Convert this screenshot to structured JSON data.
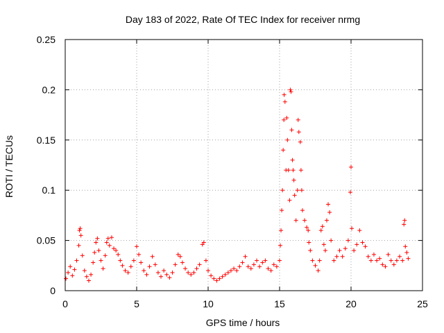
{
  "chart_data": {
    "type": "scatter",
    "title": "Day 183 of 2022, Rate Of TEC Index for receiver nrmg",
    "xlabel": "GPS time / hours",
    "ylabel": "ROTI / TECUs",
    "xlim": [
      0,
      25
    ],
    "ylim": [
      0,
      0.25
    ],
    "xticks": [
      0,
      5,
      10,
      15,
      20,
      25
    ],
    "xtick_labels": [
      "0",
      "5",
      "10",
      "15",
      "20",
      "25"
    ],
    "yticks": [
      0,
      0.05,
      0.1,
      0.15,
      0.2,
      0.25
    ],
    "ytick_labels": [
      "0",
      "0.05",
      "0.1",
      "0.15",
      "0.2",
      "0.25"
    ],
    "grid": true,
    "marker": "+",
    "color": "#ff0000",
    "series": [
      {
        "name": "ROTI",
        "points": [
          [
            0.05,
            0.012
          ],
          [
            0.2,
            0.018
          ],
          [
            0.35,
            0.024
          ],
          [
            0.5,
            0.015
          ],
          [
            0.65,
            0.021
          ],
          [
            0.8,
            0.03
          ],
          [
            0.95,
            0.045
          ],
          [
            1.0,
            0.06
          ],
          [
            1.05,
            0.062
          ],
          [
            1.1,
            0.055
          ],
          [
            1.2,
            0.035
          ],
          [
            1.35,
            0.02
          ],
          [
            1.5,
            0.014
          ],
          [
            1.65,
            0.01
          ],
          [
            1.8,
            0.016
          ],
          [
            1.95,
            0.028
          ],
          [
            2.05,
            0.038
          ],
          [
            2.15,
            0.048
          ],
          [
            2.25,
            0.052
          ],
          [
            2.35,
            0.04
          ],
          [
            2.5,
            0.03
          ],
          [
            2.65,
            0.022
          ],
          [
            2.8,
            0.035
          ],
          [
            2.9,
            0.048
          ],
          [
            3.0,
            0.052
          ],
          [
            3.1,
            0.045
          ],
          [
            3.25,
            0.053
          ],
          [
            3.4,
            0.042
          ],
          [
            3.55,
            0.04
          ],
          [
            3.7,
            0.036
          ],
          [
            3.85,
            0.03
          ],
          [
            4.0,
            0.025
          ],
          [
            4.2,
            0.02
          ],
          [
            4.4,
            0.018
          ],
          [
            4.6,
            0.024
          ],
          [
            4.8,
            0.03
          ],
          [
            5.0,
            0.044
          ],
          [
            5.15,
            0.036
          ],
          [
            5.3,
            0.028
          ],
          [
            5.5,
            0.02
          ],
          [
            5.7,
            0.016
          ],
          [
            5.9,
            0.024
          ],
          [
            6.1,
            0.034
          ],
          [
            6.3,
            0.026
          ],
          [
            6.5,
            0.018
          ],
          [
            6.7,
            0.014
          ],
          [
            6.9,
            0.02
          ],
          [
            7.1,
            0.016
          ],
          [
            7.3,
            0.013
          ],
          [
            7.5,
            0.018
          ],
          [
            7.7,
            0.026
          ],
          [
            7.9,
            0.036
          ],
          [
            8.05,
            0.034
          ],
          [
            8.2,
            0.028
          ],
          [
            8.4,
            0.022
          ],
          [
            8.6,
            0.018
          ],
          [
            8.8,
            0.016
          ],
          [
            9.0,
            0.018
          ],
          [
            9.2,
            0.022
          ],
          [
            9.4,
            0.026
          ],
          [
            9.6,
            0.046
          ],
          [
            9.7,
            0.048
          ],
          [
            9.85,
            0.03
          ],
          [
            10.0,
            0.02
          ],
          [
            10.2,
            0.015
          ],
          [
            10.4,
            0.012
          ],
          [
            10.6,
            0.01
          ],
          [
            10.8,
            0.012
          ],
          [
            11.0,
            0.014
          ],
          [
            11.2,
            0.016
          ],
          [
            11.4,
            0.018
          ],
          [
            11.6,
            0.02
          ],
          [
            11.8,
            0.022
          ],
          [
            12.0,
            0.02
          ],
          [
            12.2,
            0.024
          ],
          [
            12.4,
            0.028
          ],
          [
            12.6,
            0.034
          ],
          [
            12.8,
            0.024
          ],
          [
            13.0,
            0.022
          ],
          [
            13.2,
            0.026
          ],
          [
            13.4,
            0.03
          ],
          [
            13.6,
            0.024
          ],
          [
            13.8,
            0.028
          ],
          [
            14.0,
            0.03
          ],
          [
            14.2,
            0.022
          ],
          [
            14.4,
            0.02
          ],
          [
            14.6,
            0.026
          ],
          [
            14.8,
            0.024
          ],
          [
            15.0,
            0.03
          ],
          [
            15.05,
            0.045
          ],
          [
            15.1,
            0.06
          ],
          [
            15.15,
            0.08
          ],
          [
            15.2,
            0.1
          ],
          [
            15.25,
            0.14
          ],
          [
            15.3,
            0.17
          ],
          [
            15.32,
            0.195
          ],
          [
            15.38,
            0.188
          ],
          [
            15.45,
            0.12
          ],
          [
            15.5,
            0.172
          ],
          [
            15.55,
            0.15
          ],
          [
            15.62,
            0.12
          ],
          [
            15.7,
            0.09
          ],
          [
            15.75,
            0.2
          ],
          [
            15.8,
            0.198
          ],
          [
            15.85,
            0.16
          ],
          [
            15.9,
            0.13
          ],
          [
            15.95,
            0.12
          ],
          [
            16.0,
            0.11
          ],
          [
            16.05,
            0.095
          ],
          [
            16.15,
            0.07
          ],
          [
            16.25,
            0.1
          ],
          [
            16.3,
            0.17
          ],
          [
            16.35,
            0.158
          ],
          [
            16.45,
            0.148
          ],
          [
            16.5,
            0.12
          ],
          [
            16.55,
            0.1
          ],
          [
            16.6,
            0.08
          ],
          [
            16.75,
            0.07
          ],
          [
            16.9,
            0.063
          ],
          [
            17.0,
            0.06
          ],
          [
            17.05,
            0.048
          ],
          [
            17.15,
            0.04
          ],
          [
            17.3,
            0.03
          ],
          [
            17.5,
            0.025
          ],
          [
            17.7,
            0.02
          ],
          [
            17.8,
            0.03
          ],
          [
            17.9,
            0.06
          ],
          [
            18.0,
            0.064
          ],
          [
            18.1,
            0.046
          ],
          [
            18.2,
            0.04
          ],
          [
            18.3,
            0.07
          ],
          [
            18.4,
            0.086
          ],
          [
            18.5,
            0.078
          ],
          [
            18.6,
            0.05
          ],
          [
            18.8,
            0.03
          ],
          [
            19.0,
            0.034
          ],
          [
            19.2,
            0.04
          ],
          [
            19.4,
            0.034
          ],
          [
            19.6,
            0.042
          ],
          [
            19.8,
            0.05
          ],
          [
            19.95,
            0.098
          ],
          [
            20.0,
            0.123
          ],
          [
            20.05,
            0.062
          ],
          [
            20.2,
            0.04
          ],
          [
            20.4,
            0.046
          ],
          [
            20.6,
            0.06
          ],
          [
            20.8,
            0.048
          ],
          [
            21.0,
            0.044
          ],
          [
            21.2,
            0.034
          ],
          [
            21.4,
            0.03
          ],
          [
            21.6,
            0.036
          ],
          [
            21.8,
            0.03
          ],
          [
            22.0,
            0.032
          ],
          [
            22.2,
            0.026
          ],
          [
            22.4,
            0.024
          ],
          [
            22.6,
            0.036
          ],
          [
            22.8,
            0.03
          ],
          [
            23.0,
            0.026
          ],
          [
            23.2,
            0.03
          ],
          [
            23.4,
            0.034
          ],
          [
            23.6,
            0.03
          ],
          [
            23.7,
            0.066
          ],
          [
            23.75,
            0.07
          ],
          [
            23.8,
            0.044
          ],
          [
            23.9,
            0.038
          ],
          [
            24.0,
            0.032
          ]
        ]
      }
    ]
  }
}
